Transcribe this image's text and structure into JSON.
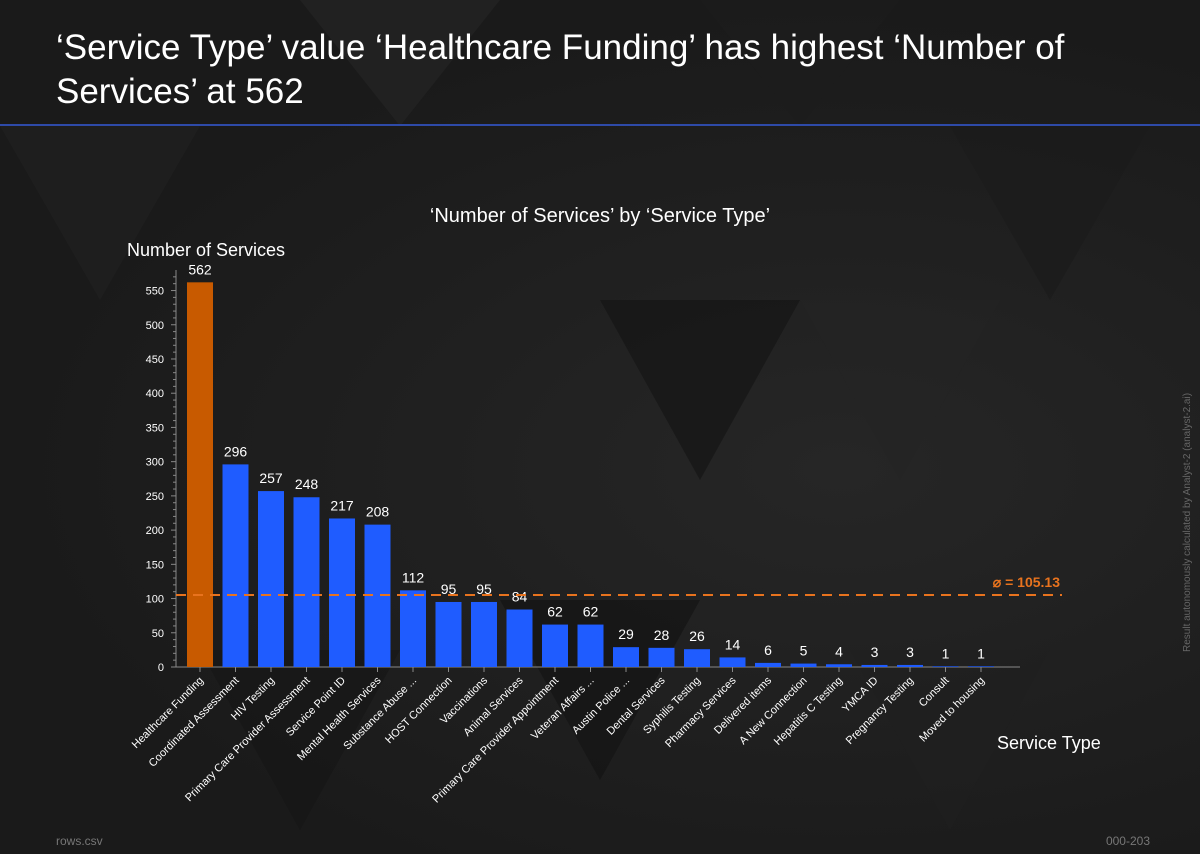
{
  "headline": "‘Service Type’ value ‘Healthcare Funding’ has highest ‘Number of Services’ at 562",
  "footer": {
    "left": "rows.csv",
    "right": "000-203"
  },
  "side_note": "Result autonomously calculated by Analyst-2 (analyst-2.ai)",
  "colors": {
    "highlight": "#c85a00",
    "bar": "#1f5cff",
    "average": "#e8731e",
    "axis": "#888888"
  },
  "chart_data": {
    "type": "bar",
    "title": "‘Number of Services’ by ‘Service Type’",
    "xlabel": "Service Type",
    "ylabel": "Number of Services",
    "ylim": [
      0,
      580
    ],
    "yticks": [
      0,
      50,
      100,
      150,
      200,
      250,
      300,
      350,
      400,
      450,
      500,
      550
    ],
    "grid": false,
    "highlight_index": 0,
    "average": {
      "value": 105.13,
      "label": "⌀ = 105.13"
    },
    "categories": [
      "Healthcare Funding",
      "Coordinated Assessment",
      "HIV Testing",
      "Primary Care Provider Assessment",
      "Service Point ID",
      "Mental Health Services",
      "Substance Abuse ...",
      "HOST Connection",
      "Vaccinations",
      "Animal Services",
      "Primary Care Provider Appointment",
      "Veteran Affairs ...",
      "Austin Police ...",
      "Dental Services",
      "Syphilis Testing",
      "Pharmacy Services",
      "Delivered items",
      "A New Connection",
      "Hepatitis C Testing",
      "YMCA ID",
      "Pregnancy Testing",
      "Consult",
      "Moved to housing"
    ],
    "values": [
      562,
      296,
      257,
      248,
      217,
      208,
      112,
      95,
      95,
      84,
      62,
      62,
      29,
      28,
      26,
      14,
      6,
      5,
      4,
      3,
      3,
      1,
      1
    ]
  }
}
